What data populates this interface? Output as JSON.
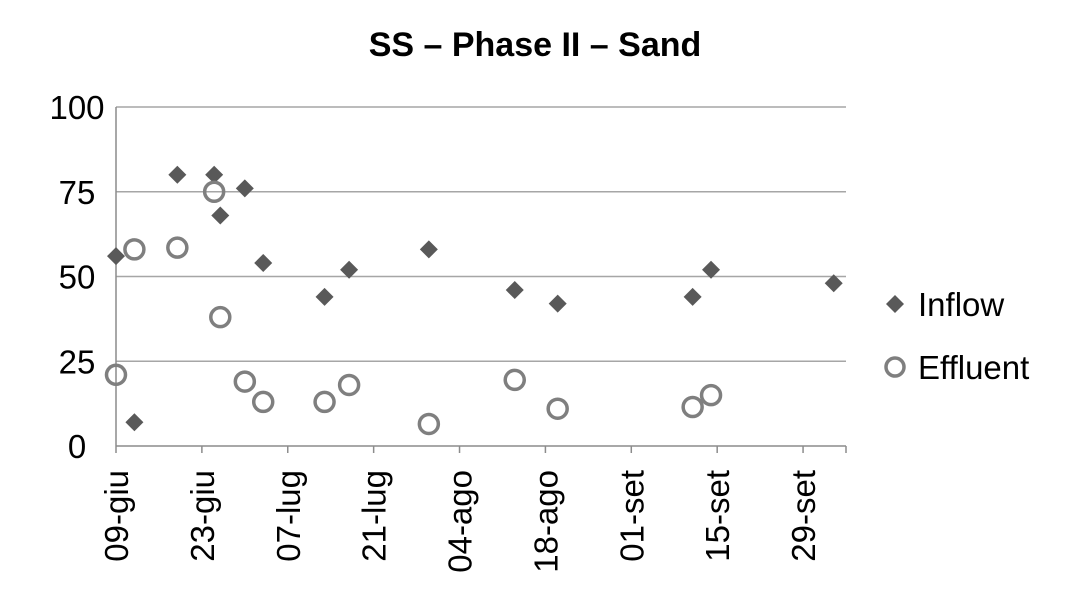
{
  "chart_data": {
    "type": "scatter",
    "title": "SS – Phase II – Sand",
    "xlabel": "",
    "ylabel": "",
    "ylim": [
      0,
      100
    ],
    "xlim": [
      "2012-06-09",
      "2012-10-06"
    ],
    "y_ticks": [
      "0",
      "25",
      "50",
      "75",
      "100"
    ],
    "x_ticks": [
      {
        "date": "2012-06-09",
        "label": "09-giu"
      },
      {
        "date": "2012-06-23",
        "label": "23-giu"
      },
      {
        "date": "2012-07-07",
        "label": "07-lug"
      },
      {
        "date": "2012-07-21",
        "label": "21-lug"
      },
      {
        "date": "2012-08-04",
        "label": "04-ago"
      },
      {
        "date": "2012-08-18",
        "label": "18-ago"
      },
      {
        "date": "2012-09-01",
        "label": "01-set"
      },
      {
        "date": "2012-09-15",
        "label": "15-set"
      },
      {
        "date": "2012-09-29",
        "label": "29-set"
      }
    ],
    "grid": true,
    "legend_position": "right",
    "series": [
      {
        "name": "Inflow",
        "marker": "diamond",
        "color": "#595959",
        "points": [
          {
            "x": "2012-06-09",
            "y": 56
          },
          {
            "x": "2012-06-12",
            "y": 7
          },
          {
            "x": "2012-06-19",
            "y": 80
          },
          {
            "x": "2012-06-25",
            "y": 80
          },
          {
            "x": "2012-06-26",
            "y": 68
          },
          {
            "x": "2012-06-30",
            "y": 76
          },
          {
            "x": "2012-07-03",
            "y": 54
          },
          {
            "x": "2012-07-13",
            "y": 44
          },
          {
            "x": "2012-07-17",
            "y": 52
          },
          {
            "x": "2012-07-30",
            "y": 58
          },
          {
            "x": "2012-08-13",
            "y": 46
          },
          {
            "x": "2012-08-20",
            "y": 42
          },
          {
            "x": "2012-09-11",
            "y": 44
          },
          {
            "x": "2012-09-14",
            "y": 52
          },
          {
            "x": "2012-10-04",
            "y": 48
          }
        ]
      },
      {
        "name": "Effluent",
        "marker": "circle-open",
        "color": "#7f7f7f",
        "points": [
          {
            "x": "2012-06-09",
            "y": 21
          },
          {
            "x": "2012-06-12",
            "y": 58
          },
          {
            "x": "2012-06-19",
            "y": 58.5
          },
          {
            "x": "2012-06-25",
            "y": 75
          },
          {
            "x": "2012-06-26",
            "y": 38
          },
          {
            "x": "2012-06-30",
            "y": 19
          },
          {
            "x": "2012-07-03",
            "y": 13
          },
          {
            "x": "2012-07-13",
            "y": 13
          },
          {
            "x": "2012-07-17",
            "y": 18
          },
          {
            "x": "2012-07-30",
            "y": 6.5
          },
          {
            "x": "2012-08-13",
            "y": 19.5
          },
          {
            "x": "2012-08-20",
            "y": 11
          },
          {
            "x": "2012-09-11",
            "y": 11.5
          },
          {
            "x": "2012-09-14",
            "y": 15
          }
        ]
      }
    ]
  }
}
